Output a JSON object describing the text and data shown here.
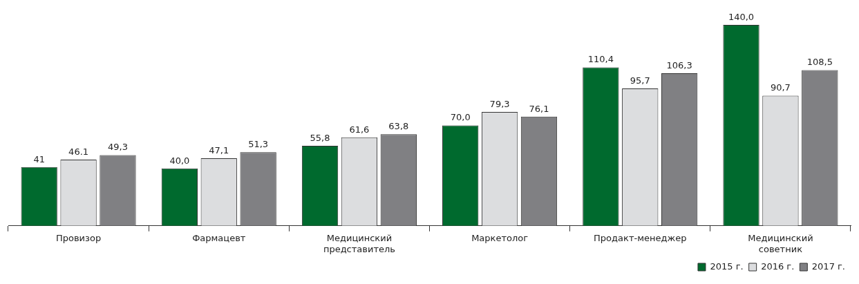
{
  "chart_data": {
    "type": "bar",
    "categories": [
      "Провизор",
      "Фармацевт",
      "Медицинский представитель",
      "Маркетолог",
      "Продакт-менеджер",
      "Медицинский советник"
    ],
    "series": [
      {
        "name": "2015 г.",
        "color": "#006a2e",
        "values": [
          41,
          40.0,
          55.8,
          70.0,
          110.4,
          140.0
        ],
        "value_labels": [
          "41",
          "40,0",
          "55,8",
          "70,0",
          "110,4",
          "140,0"
        ]
      },
      {
        "name": "2016 г.",
        "color": "#dcdddf",
        "values": [
          46.1,
          47.1,
          61.6,
          79.3,
          95.7,
          90.7
        ],
        "value_labels": [
          "46.1",
          "47,1",
          "61,6",
          "79,3",
          "95,7",
          "90,7"
        ]
      },
      {
        "name": "2017 г.",
        "color": "#808083",
        "values": [
          49.3,
          51.3,
          63.8,
          76.1,
          106.3,
          108.5
        ],
        "value_labels": [
          "49,3",
          "51,3",
          "63,8",
          "76,1",
          "106,3",
          "108,5"
        ]
      }
    ],
    "legend": "bottom right"
  }
}
